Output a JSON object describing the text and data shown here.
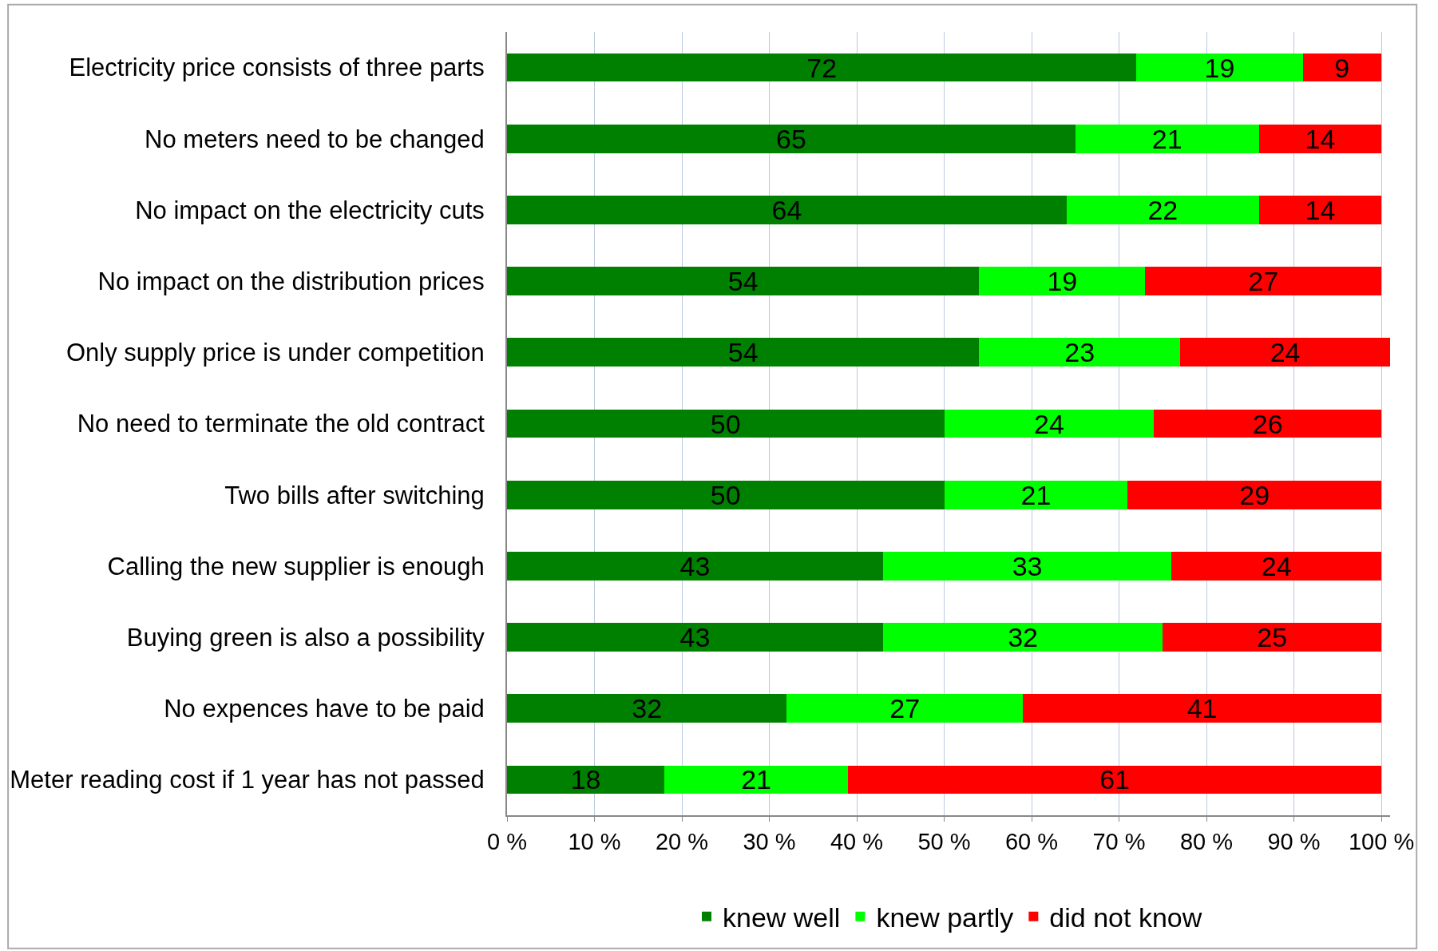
{
  "chart_data": {
    "type": "bar",
    "orientation": "horizontal",
    "stacked": true,
    "data_labels": true,
    "grid": "x",
    "legend": "bottom",
    "categories": [
      "Electricity price consists of three parts",
      "No meters need to be changed",
      "No impact on the electricity cuts",
      "No impact on the distribution prices",
      "Only supply price is under competition",
      "No need to terminate the old contract",
      "Two bills after switching",
      "Calling the new supplier is enough",
      "Buying green is also a possibility",
      "No expences have to be paid",
      "Meter reading cost if 1 year has not passed"
    ],
    "series": [
      {
        "name": "knew well",
        "color": "#008000",
        "values": [
          72,
          65,
          64,
          54,
          54,
          50,
          50,
          43,
          43,
          32,
          18
        ]
      },
      {
        "name": "knew partly",
        "color": "#00ff00",
        "values": [
          19,
          21,
          22,
          19,
          23,
          24,
          21,
          33,
          32,
          27,
          21
        ]
      },
      {
        "name": "did not know",
        "color": "#ff0000",
        "values": [
          9,
          14,
          14,
          27,
          24,
          26,
          29,
          24,
          25,
          41,
          61
        ]
      }
    ],
    "xlim": [
      0,
      101
    ],
    "xticks": [
      {
        "value": 0,
        "label": "0 %"
      },
      {
        "value": 10,
        "label": "10 %"
      },
      {
        "value": 20,
        "label": "20 %"
      },
      {
        "value": 30,
        "label": "30 %"
      },
      {
        "value": 40,
        "label": "40 %"
      },
      {
        "value": 50,
        "label": "50 %"
      },
      {
        "value": 60,
        "label": "60 %"
      },
      {
        "value": 70,
        "label": "70 %"
      },
      {
        "value": 80,
        "label": "80 %"
      },
      {
        "value": 90,
        "label": "90 %"
      },
      {
        "value": 100,
        "label": "100 %"
      }
    ]
  }
}
